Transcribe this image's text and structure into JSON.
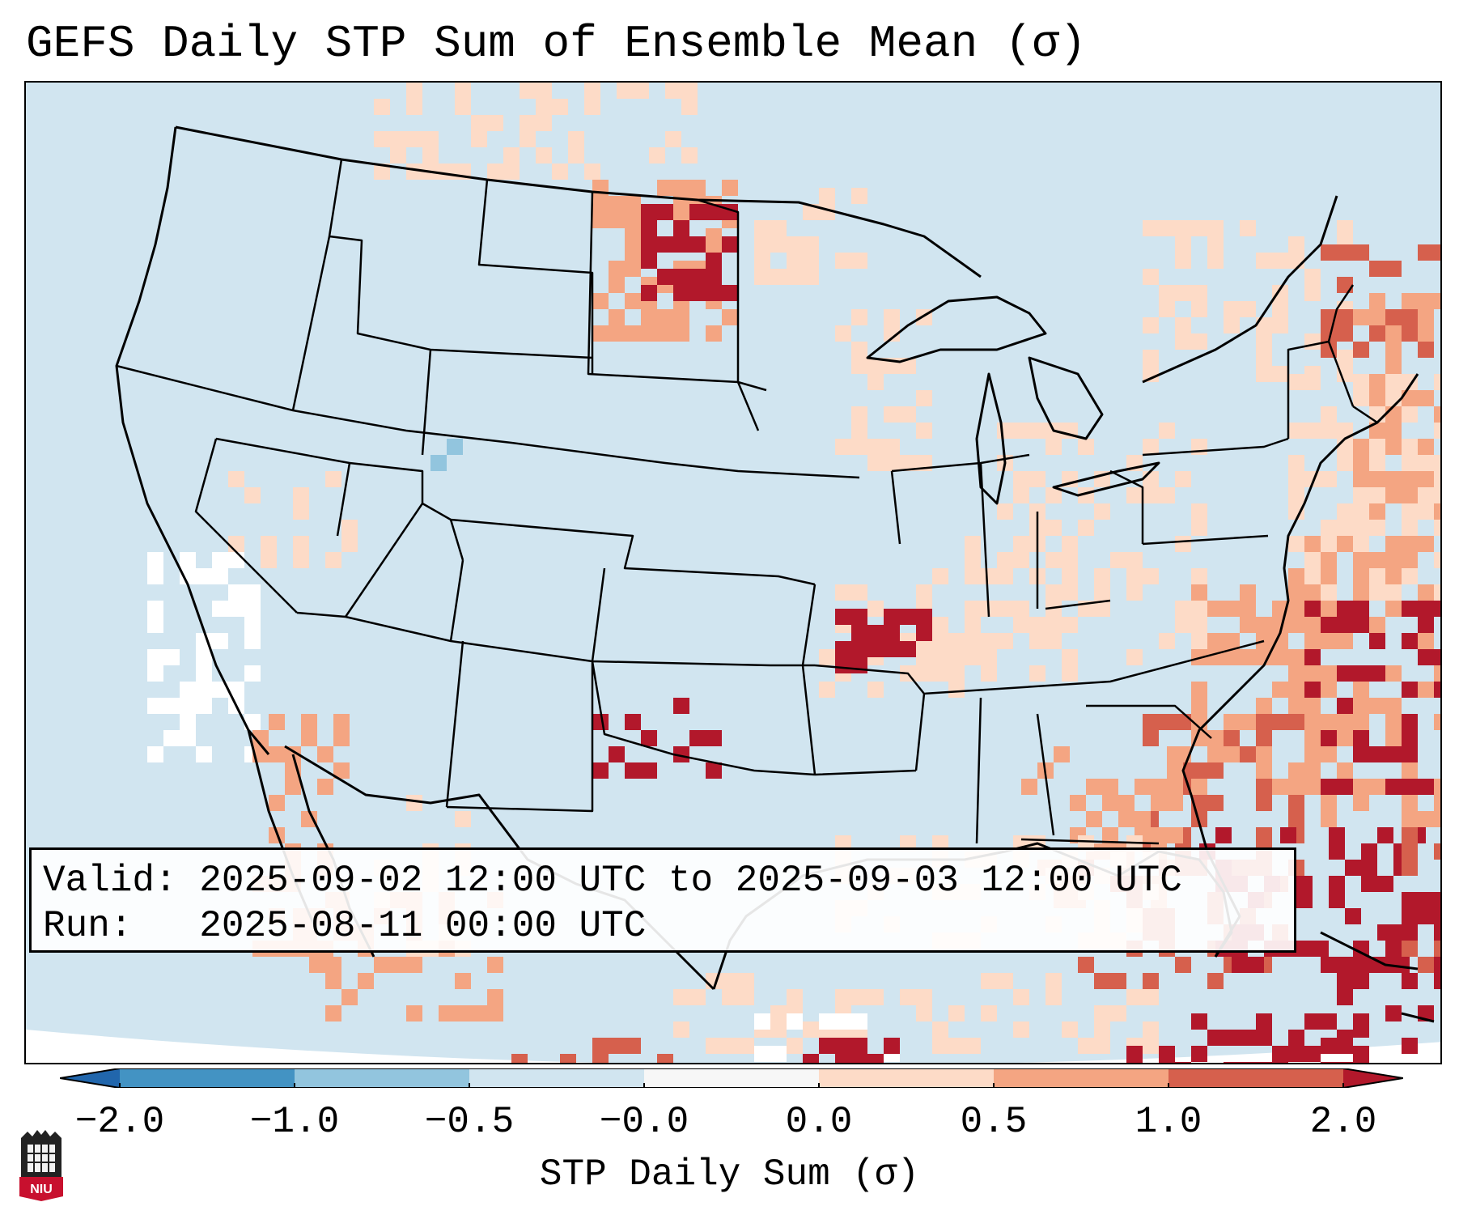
{
  "title": "GEFS Daily STP Sum of Ensemble Mean (σ)",
  "info": {
    "valid_label": "Valid:",
    "valid_value": "2025-09-02 12:00 UTC to 2025-09-03 12:00 UTC",
    "run_label": "Run:",
    "run_value": "2025-08-11 00:00 UTC"
  },
  "colorbar": {
    "label": "STP Daily Sum (σ)",
    "ticks": [
      "−2.0",
      "−1.0",
      "−0.5",
      "−0.0",
      "0.0",
      "0.5",
      "1.0",
      "2.0"
    ],
    "bin_colors": [
      "#4393c3",
      "#92c5de",
      "#d1e5f0",
      "#f7f7f7",
      "#fddbc7",
      "#f4a582",
      "#d6604d"
    ],
    "under_color": "#2166ac",
    "over_color": "#b2182b"
  },
  "map": {
    "background_color": "#d1e5f0",
    "projection": "Lambert Conformal",
    "region": "CONUS",
    "land_border_color": "#000000"
  },
  "logo": {
    "text": "NIU"
  }
}
